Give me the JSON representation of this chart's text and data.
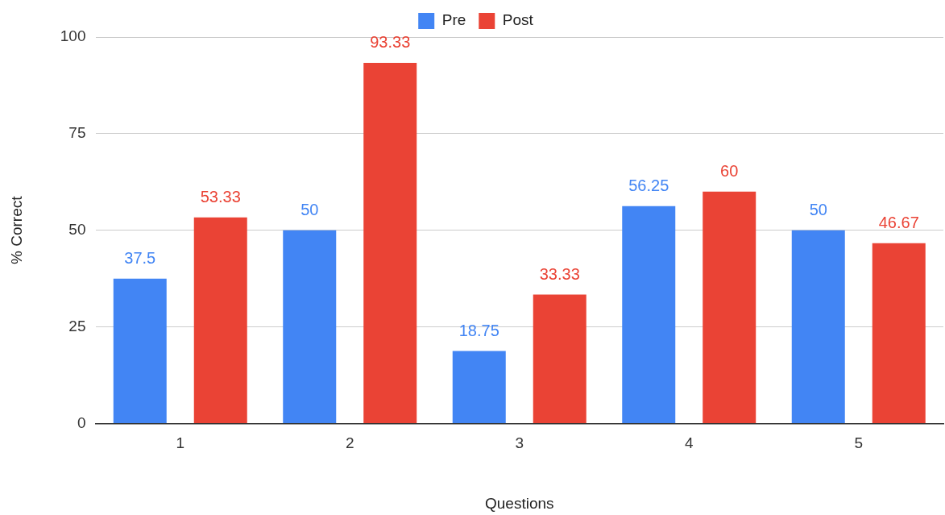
{
  "chart_data": {
    "type": "bar",
    "xlabel": "Questions",
    "ylabel": "% Correct",
    "categories": [
      "1",
      "2",
      "3",
      "4",
      "5"
    ],
    "series": [
      {
        "name": "Pre",
        "color": "#4285f4",
        "values": [
          37.5,
          50,
          18.75,
          56.25,
          50
        ]
      },
      {
        "name": "Post",
        "color": "#ea4335",
        "values": [
          53.33,
          93.33,
          33.33,
          60,
          46.67
        ]
      }
    ],
    "ylim": [
      0,
      100
    ],
    "yticks": [
      0,
      25,
      50,
      75,
      100
    ],
    "grid": "y",
    "legend": "top",
    "data_labels": true
  }
}
